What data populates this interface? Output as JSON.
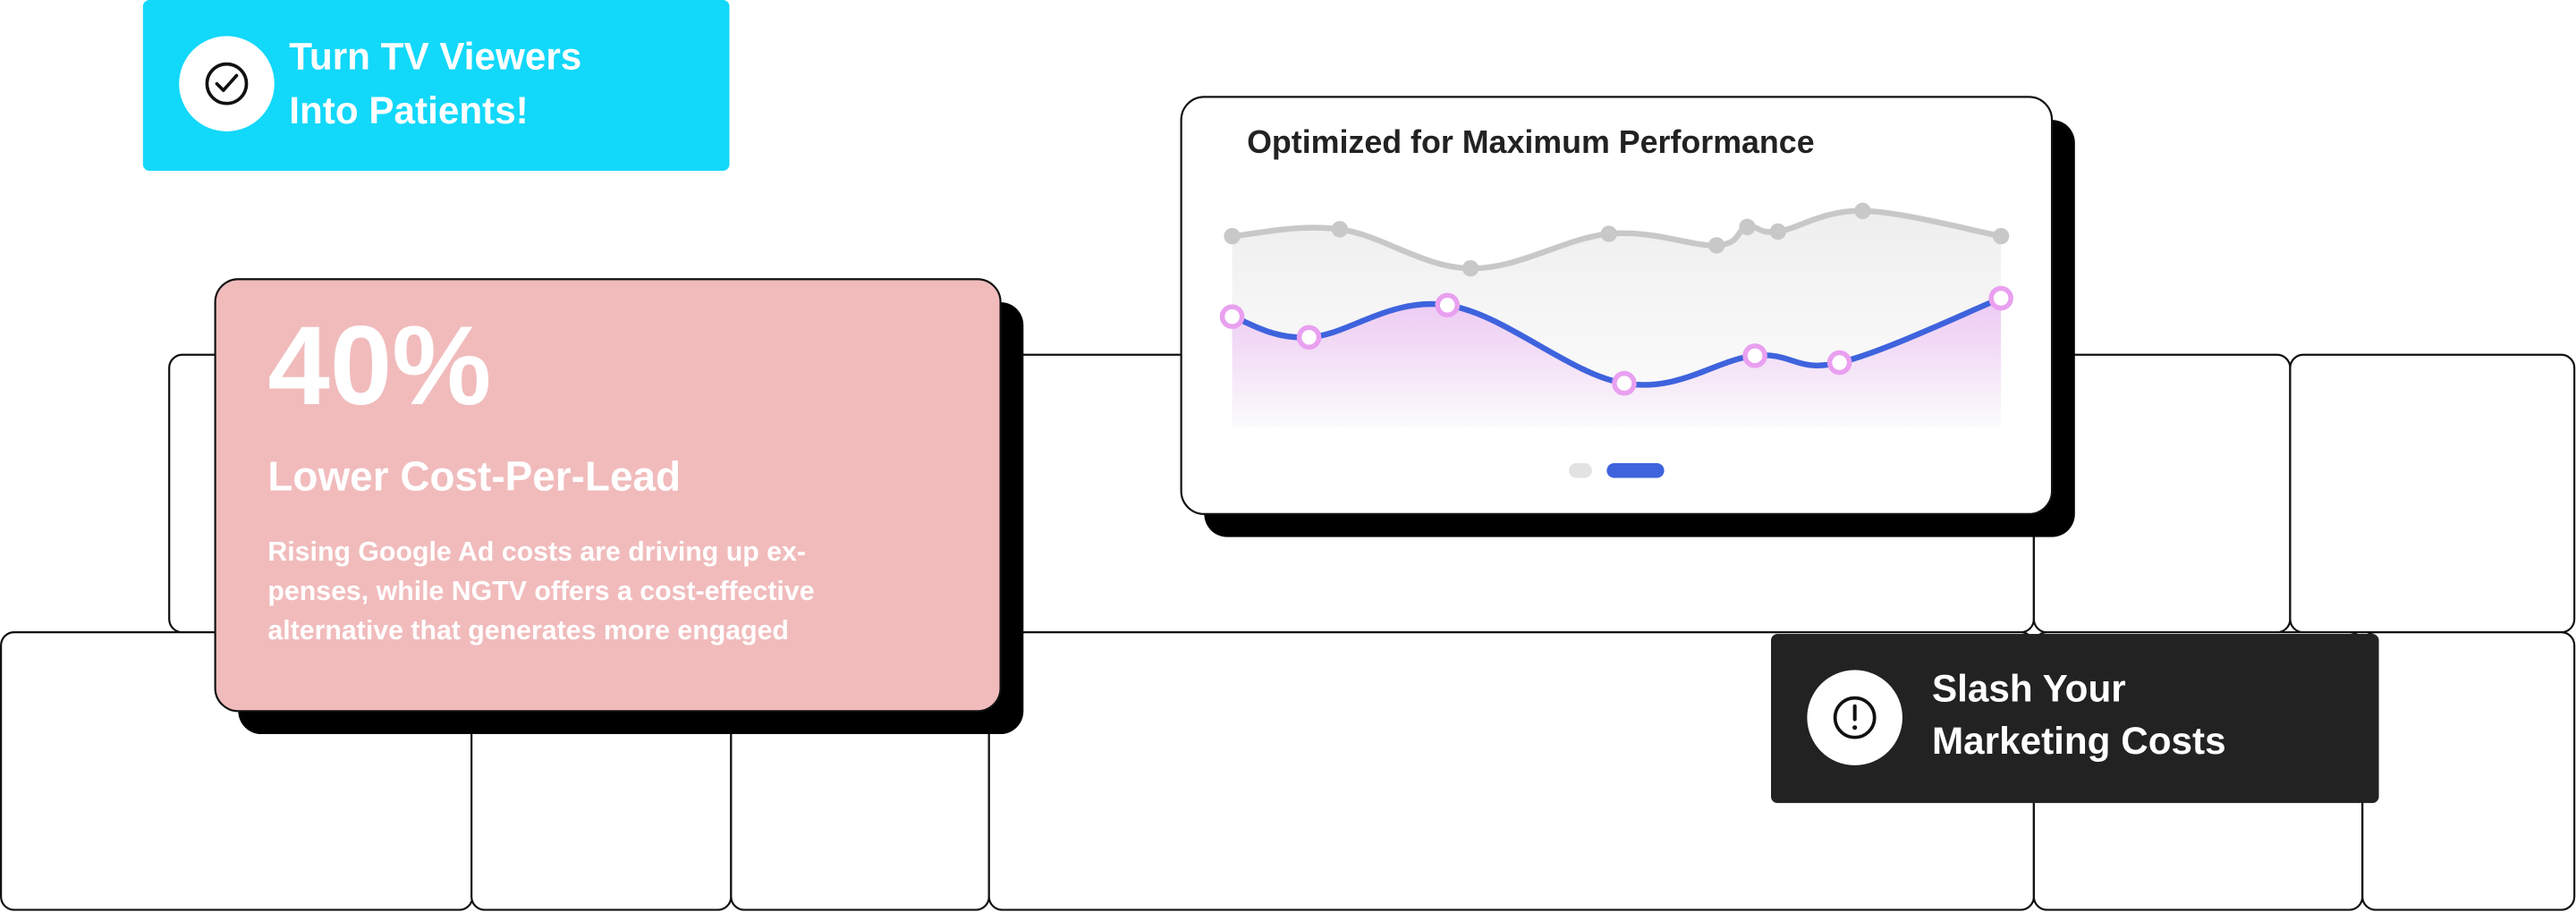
{
  "badge_top": {
    "text_lines": [
      "Turn TV Viewers",
      "Into Patients!"
    ]
  },
  "stat_card": {
    "value": "40%",
    "heading": "Lower Cost-Per-Lead",
    "body_lines": [
      "Rising Google Ad costs are driving up ex-",
      "penses, while NGTV offers a cost-effective",
      "alternative that generates more engaged"
    ]
  },
  "chart": {
    "type": "line",
    "title": "Optimized for Maximum Performance",
    "xlim": [
      0,
      100
    ],
    "ylim": [
      0,
      100
    ],
    "series": [
      {
        "color": "#c8c8c8",
        "x": [
          0,
          14,
          31,
          49,
          63,
          67,
          71,
          82,
          100
        ],
        "values": [
          83,
          86,
          69,
          84,
          79,
          87,
          85,
          94,
          83
        ]
      },
      {
        "color": "#3e63dd",
        "x": [
          0,
          10,
          28,
          51,
          68,
          79,
          100
        ],
        "values": [
          48,
          39,
          53,
          19,
          31,
          28,
          56
        ]
      }
    ]
  },
  "badge_bottom": {
    "text_lines": [
      "Slash Your",
      "Marketing Costs"
    ]
  }
}
